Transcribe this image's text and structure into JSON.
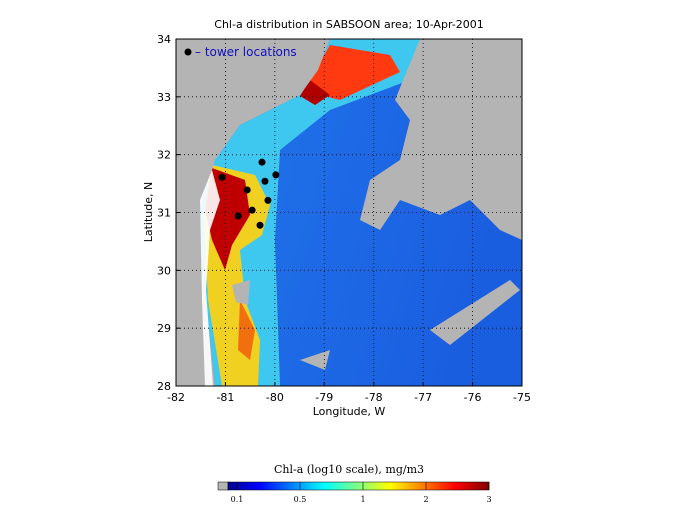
{
  "map": {
    "title": "Chl-a distribution in SABSOON area; 10-Apr-2001",
    "x_label": "Longitude, W",
    "y_label": "Latitude, N",
    "xlim": [
      -82,
      -75
    ],
    "xticks": [
      -82,
      -81,
      -80,
      -79,
      -78,
      -77,
      -76,
      -75
    ],
    "ylim": [
      28,
      34
    ],
    "yticks": [
      28,
      29,
      30,
      31,
      32,
      33,
      34
    ],
    "grid": true,
    "legend": "– tower locations",
    "towers": [
      {
        "lon": -81.07,
        "lat": 31.61
      },
      {
        "lon": -80.26,
        "lat": 31.87
      },
      {
        "lon": -79.98,
        "lat": 31.65
      },
      {
        "lon": -80.2,
        "lat": 31.54
      },
      {
        "lon": -80.56,
        "lat": 31.39
      },
      {
        "lon": -80.14,
        "lat": 31.21
      },
      {
        "lon": -80.46,
        "lat": 31.04
      },
      {
        "lon": -80.74,
        "lat": 30.94
      },
      {
        "lon": -80.3,
        "lat": 30.78
      }
    ],
    "colorbar": {
      "label": "Chl-a (log10 scale), mg/m3",
      "ticks": [
        0.1,
        0.5,
        1,
        2,
        3
      ]
    }
  }
}
